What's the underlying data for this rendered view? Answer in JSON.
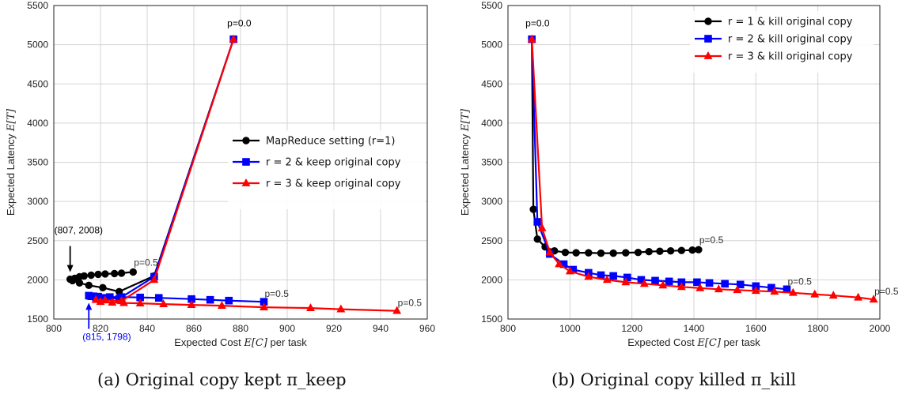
{
  "chart_data": [
    {
      "id": "a",
      "type": "line",
      "xlabel": "Expected Cost E[C] per task",
      "ylabel": "Expected Latency E[T]",
      "xlim": [
        800,
        960
      ],
      "ylim": [
        1500,
        5500
      ],
      "xticks": [
        800,
        820,
        840,
        860,
        880,
        900,
        920,
        940,
        960
      ],
      "yticks": [
        1500,
        2000,
        2500,
        3000,
        3500,
        4000,
        4500,
        5000,
        5500
      ],
      "grid": true,
      "legend_position": "center-right",
      "caption": "(a) Original copy kept π_keep",
      "series": [
        {
          "name": "MapReduce setting (r=1)",
          "color": "#000000",
          "marker": "circle",
          "points": [
            [
              877,
              5070
            ],
            [
              843,
              2050
            ],
            [
              828,
              1850
            ],
            [
              821,
              1900
            ],
            [
              815,
              1930
            ],
            [
              811,
              1960
            ],
            [
              808,
              1990
            ],
            [
              807,
              2008
            ],
            [
              809,
              2020
            ],
            [
              811,
              2040
            ],
            [
              813,
              2050
            ],
            [
              816,
              2060
            ],
            [
              819,
              2070
            ],
            [
              822,
              2075
            ],
            [
              826,
              2080
            ],
            [
              829,
              2085
            ],
            [
              834,
              2100
            ]
          ]
        },
        {
          "name": "r = 2 & keep original copy",
          "color": "#0000ff",
          "marker": "square",
          "points": [
            [
              877,
              5070
            ],
            [
              843,
              2040
            ],
            [
              828,
              1760
            ],
            [
              821,
              1770
            ],
            [
              818,
              1780
            ],
            [
              816,
              1790
            ],
            [
              815,
              1798
            ],
            [
              817,
              1790
            ],
            [
              819,
              1785
            ],
            [
              824,
              1780
            ],
            [
              829,
              1780
            ],
            [
              837,
              1775
            ],
            [
              845,
              1770
            ],
            [
              859,
              1755
            ],
            [
              867,
              1745
            ],
            [
              875,
              1735
            ],
            [
              890,
              1720
            ]
          ]
        },
        {
          "name": "r = 3 & keep original copy",
          "color": "#ff0000",
          "marker": "triangle",
          "points": [
            [
              877,
              5070
            ],
            [
              843,
              2000
            ],
            [
              829,
              1730
            ],
            [
              822,
              1740
            ],
            [
              818,
              1745
            ],
            [
              820,
              1720
            ],
            [
              825,
              1710
            ],
            [
              830,
              1705
            ],
            [
              837,
              1700
            ],
            [
              847,
              1690
            ],
            [
              859,
              1680
            ],
            [
              872,
              1670
            ],
            [
              890,
              1650
            ],
            [
              910,
              1640
            ],
            [
              923,
              1625
            ],
            [
              947,
              1605
            ]
          ]
        }
      ],
      "annotations": [
        {
          "text": "p=0.0",
          "x": 877,
          "y": 5070,
          "color": "#000000"
        },
        {
          "text": "p=0.5",
          "x": 834,
          "y": 2100,
          "color": "#333333"
        },
        {
          "text": "p=0.5",
          "x": 890,
          "y": 1720,
          "color": "#333333"
        },
        {
          "text": "p=0.5",
          "x": 947,
          "y": 1605,
          "color": "#333333"
        },
        {
          "text": "(807, 2008)",
          "x": 807,
          "y": 2008,
          "color": "#000000"
        },
        {
          "text": "(815, 1798)",
          "x": 815,
          "y": 1798,
          "color": "#0000ff"
        }
      ]
    },
    {
      "id": "b",
      "type": "line",
      "xlabel": "Expected Cost E[C] per task",
      "ylabel": "Expected Latency E[T]",
      "xlim": [
        800,
        2000
      ],
      "ylim": [
        1500,
        5500
      ],
      "xticks": [
        800,
        1000,
        1200,
        1400,
        1600,
        1800,
        2000
      ],
      "yticks": [
        1500,
        2000,
        2500,
        3000,
        3500,
        4000,
        4500,
        5000,
        5500
      ],
      "grid": true,
      "legend_position": "top-right",
      "caption": "(b) Original copy killed π_kill",
      "series": [
        {
          "name": "r = 1 & kill original copy",
          "color": "#000000",
          "marker": "circle",
          "points": [
            [
              877,
              5070
            ],
            [
              882,
              2900
            ],
            [
              895,
              2520
            ],
            [
              920,
              2420
            ],
            [
              950,
              2370
            ],
            [
              985,
              2350
            ],
            [
              1020,
              2345
            ],
            [
              1060,
              2345
            ],
            [
              1100,
              2340
            ],
            [
              1140,
              2340
            ],
            [
              1180,
              2345
            ],
            [
              1220,
              2350
            ],
            [
              1255,
              2360
            ],
            [
              1290,
              2365
            ],
            [
              1325,
              2370
            ],
            [
              1360,
              2375
            ],
            [
              1395,
              2380
            ],
            [
              1415,
              2385
            ]
          ]
        },
        {
          "name": "r = 2 & kill original copy",
          "color": "#0000ff",
          "marker": "square",
          "points": [
            [
              877,
              5070
            ],
            [
              895,
              2740
            ],
            [
              935,
              2330
            ],
            [
              980,
              2200
            ],
            [
              1010,
              2130
            ],
            [
              1060,
              2090
            ],
            [
              1100,
              2060
            ],
            [
              1140,
              2050
            ],
            [
              1185,
              2030
            ],
            [
              1230,
              2000
            ],
            [
              1275,
              1990
            ],
            [
              1320,
              1980
            ],
            [
              1360,
              1970
            ],
            [
              1410,
              1970
            ],
            [
              1450,
              1960
            ],
            [
              1500,
              1950
            ],
            [
              1550,
              1940
            ],
            [
              1600,
              1920
            ],
            [
              1650,
              1900
            ],
            [
              1700,
              1880
            ]
          ]
        },
        {
          "name": "r = 3 & kill original copy",
          "color": "#ff0000",
          "marker": "triangle",
          "points": [
            [
              877,
              5070
            ],
            [
              910,
              2660
            ],
            [
              935,
              2350
            ],
            [
              965,
              2200
            ],
            [
              1000,
              2110
            ],
            [
              1060,
              2040
            ],
            [
              1120,
              2000
            ],
            [
              1180,
              1970
            ],
            [
              1240,
              1950
            ],
            [
              1300,
              1930
            ],
            [
              1360,
              1910
            ],
            [
              1420,
              1895
            ],
            [
              1480,
              1880
            ],
            [
              1540,
              1870
            ],
            [
              1600,
              1860
            ],
            [
              1660,
              1850
            ],
            [
              1720,
              1835
            ],
            [
              1790,
              1815
            ],
            [
              1850,
              1800
            ],
            [
              1930,
              1775
            ],
            [
              1980,
              1750
            ]
          ]
        }
      ],
      "annotations": [
        {
          "text": "p=0.0",
          "x": 877,
          "y": 5070,
          "color": "#000000"
        },
        {
          "text": "p=0.5",
          "x": 1415,
          "y": 2385,
          "color": "#333333"
        },
        {
          "text": "p=0.5",
          "x": 1700,
          "y": 1880,
          "color": "#333333"
        },
        {
          "text": "p=0.5",
          "x": 1980,
          "y": 1750,
          "color": "#333333"
        }
      ]
    }
  ]
}
